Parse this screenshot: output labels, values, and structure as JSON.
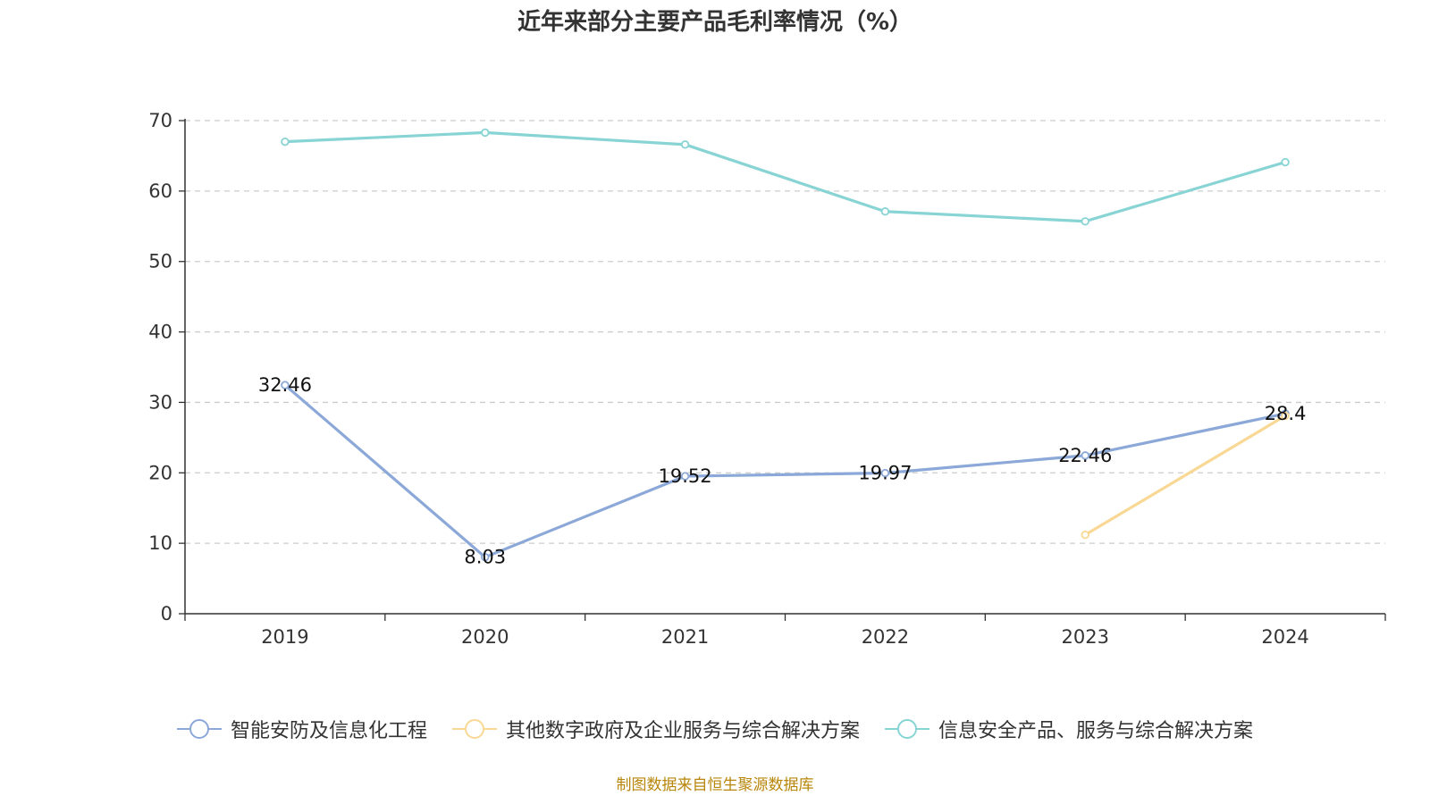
{
  "chart_data": {
    "type": "line",
    "title": "近年来部分主要产品毛利率情况（%）",
    "categories": [
      "2019",
      "2020",
      "2021",
      "2022",
      "2023",
      "2024"
    ],
    "ylim": [
      0,
      70
    ],
    "yticks": [
      0,
      10,
      20,
      30,
      40,
      50,
      60,
      70
    ],
    "grid": true,
    "legend_position": "bottom",
    "series": [
      {
        "name": "智能安防及信息化工程",
        "color": "#8ba8d8",
        "values": [
          32.46,
          8.03,
          19.52,
          19.97,
          22.46,
          28.4
        ],
        "labels": [
          "32.46",
          "8.03",
          "19.52",
          "19.97",
          "22.46",
          "28.4"
        ]
      },
      {
        "name": "其他数字政府及企业服务与综合解决方案",
        "color": "#f8d894",
        "values": [
          null,
          null,
          null,
          null,
          11.2,
          28.1
        ],
        "labels": null
      },
      {
        "name": "信息安全产品、服务与综合解决方案",
        "color": "#88d4d4",
        "values": [
          67.0,
          68.3,
          66.6,
          57.1,
          55.7,
          64.1
        ],
        "labels": null
      }
    ]
  },
  "source_note": "制图数据来自恒生聚源数据库"
}
